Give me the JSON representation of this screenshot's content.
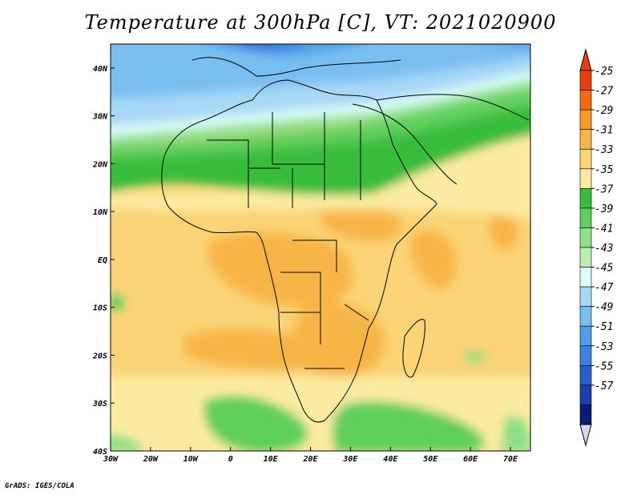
{
  "title": "Temperature at 300hPa [C], VT: 2021020900",
  "footer": "GrADS: IGES/COLA",
  "map": {
    "lon_range": [
      -30,
      75
    ],
    "lat_range": [
      -40,
      45
    ],
    "lon_ticks": [
      {
        "value": -30,
        "label": "30W"
      },
      {
        "value": -20,
        "label": "20W"
      },
      {
        "value": -10,
        "label": "10W"
      },
      {
        "value": 0,
        "label": "0"
      },
      {
        "value": 10,
        "label": "10E"
      },
      {
        "value": 20,
        "label": "20E"
      },
      {
        "value": 30,
        "label": "30E"
      },
      {
        "value": 40,
        "label": "40E"
      },
      {
        "value": 50,
        "label": "50E"
      },
      {
        "value": 60,
        "label": "60E"
      },
      {
        "value": 70,
        "label": "70E"
      }
    ],
    "lat_ticks": [
      {
        "value": 40,
        "label": "40N"
      },
      {
        "value": 30,
        "label": "30N"
      },
      {
        "value": 20,
        "label": "20N"
      },
      {
        "value": 10,
        "label": "10N"
      },
      {
        "value": 0,
        "label": "EQ"
      },
      {
        "value": -10,
        "label": "10S"
      },
      {
        "value": -20,
        "label": "20S"
      },
      {
        "value": -30,
        "label": "30S"
      },
      {
        "value": -40,
        "label": "40S"
      }
    ]
  },
  "colorbar": {
    "labels": [
      "-25",
      "-27",
      "-29",
      "-31",
      "-33",
      "-35",
      "-37",
      "-39",
      "-41",
      "-43",
      "-45",
      "-47",
      "-49",
      "-51",
      "-53",
      "-55",
      "-57"
    ],
    "colors": [
      "#e8400a",
      "#f26b0c",
      "#f59a22",
      "#f7b545",
      "#fad476",
      "#fbeba0",
      "#38bc3a",
      "#5fcf5c",
      "#8ce087",
      "#b9f0b0",
      "#dcfdf8",
      "#a7d8f5",
      "#78bff0",
      "#4f9fe8",
      "#3a82e0",
      "#2a60cc",
      "#1c3fb0",
      "#0c1a78"
    ],
    "top_triangle": "#e8400a",
    "bottom_triangle": "#dcd4f4"
  }
}
